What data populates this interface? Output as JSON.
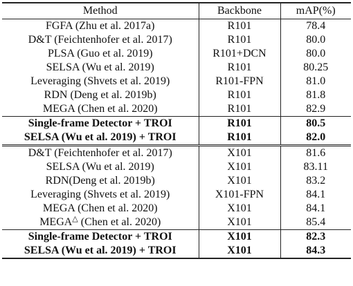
{
  "table": {
    "headers": {
      "method": "Method",
      "backbone": "Backbone",
      "map": "mAP(%)"
    },
    "groups": [
      {
        "rows": [
          {
            "method": "FGFA (Zhu et al. 2017a)",
            "backbone": "R101",
            "map": "78.4"
          },
          {
            "method": "D&T (Feichtenhofer et al. 2017)",
            "backbone": "R101",
            "map": "80.0"
          },
          {
            "method": "PLSA (Guo et al. 2019)",
            "backbone": "R101+DCN",
            "map": "80.0"
          },
          {
            "method": "SELSA (Wu et al. 2019)",
            "backbone": "R101",
            "map": "80.25"
          },
          {
            "method": "Leveraging (Shvets et al. 2019)",
            "backbone": "R101-FPN",
            "map": "81.0"
          },
          {
            "method": "RDN (Deng et al. 2019b)",
            "backbone": "R101",
            "map": "81.8"
          },
          {
            "method": "MEGA (Chen et al. 2020)",
            "backbone": "R101",
            "map": "82.9"
          }
        ],
        "ours": [
          {
            "method": "Single-frame Detector + TROI",
            "backbone": "R101",
            "map": "80.5"
          },
          {
            "method": "SELSA (Wu et al. 2019) + TROI",
            "backbone": "R101",
            "map": "82.0"
          }
        ]
      },
      {
        "rows": [
          {
            "method": "D&T (Feichtenhofer et al. 2017)",
            "backbone": "X101",
            "map": "81.6"
          },
          {
            "method": "SELSA (Wu et al. 2019)",
            "backbone": "X101",
            "map": "83.11"
          },
          {
            "method": "RDN(Deng et al. 2019b)",
            "backbone": "X101",
            "map": "83.2"
          },
          {
            "method": "Leveraging (Shvets et al. 2019)",
            "backbone": "X101-FPN",
            "map": "84.1"
          },
          {
            "method": "MEGA (Chen et al. 2020)",
            "backbone": "X101",
            "map": "84.1"
          },
          {
            "method": "MEGA",
            "mark": "△",
            "method_suffix": "(Chen et al. 2020)",
            "backbone": "X101",
            "map": "85.4"
          }
        ],
        "ours": [
          {
            "method": "Single-frame Detector + TROI",
            "backbone": "X101",
            "map": "82.3"
          },
          {
            "method": "SELSA (Wu et al. 2019) + TROI",
            "backbone": "X101",
            "map": "84.3"
          }
        ]
      }
    ]
  }
}
